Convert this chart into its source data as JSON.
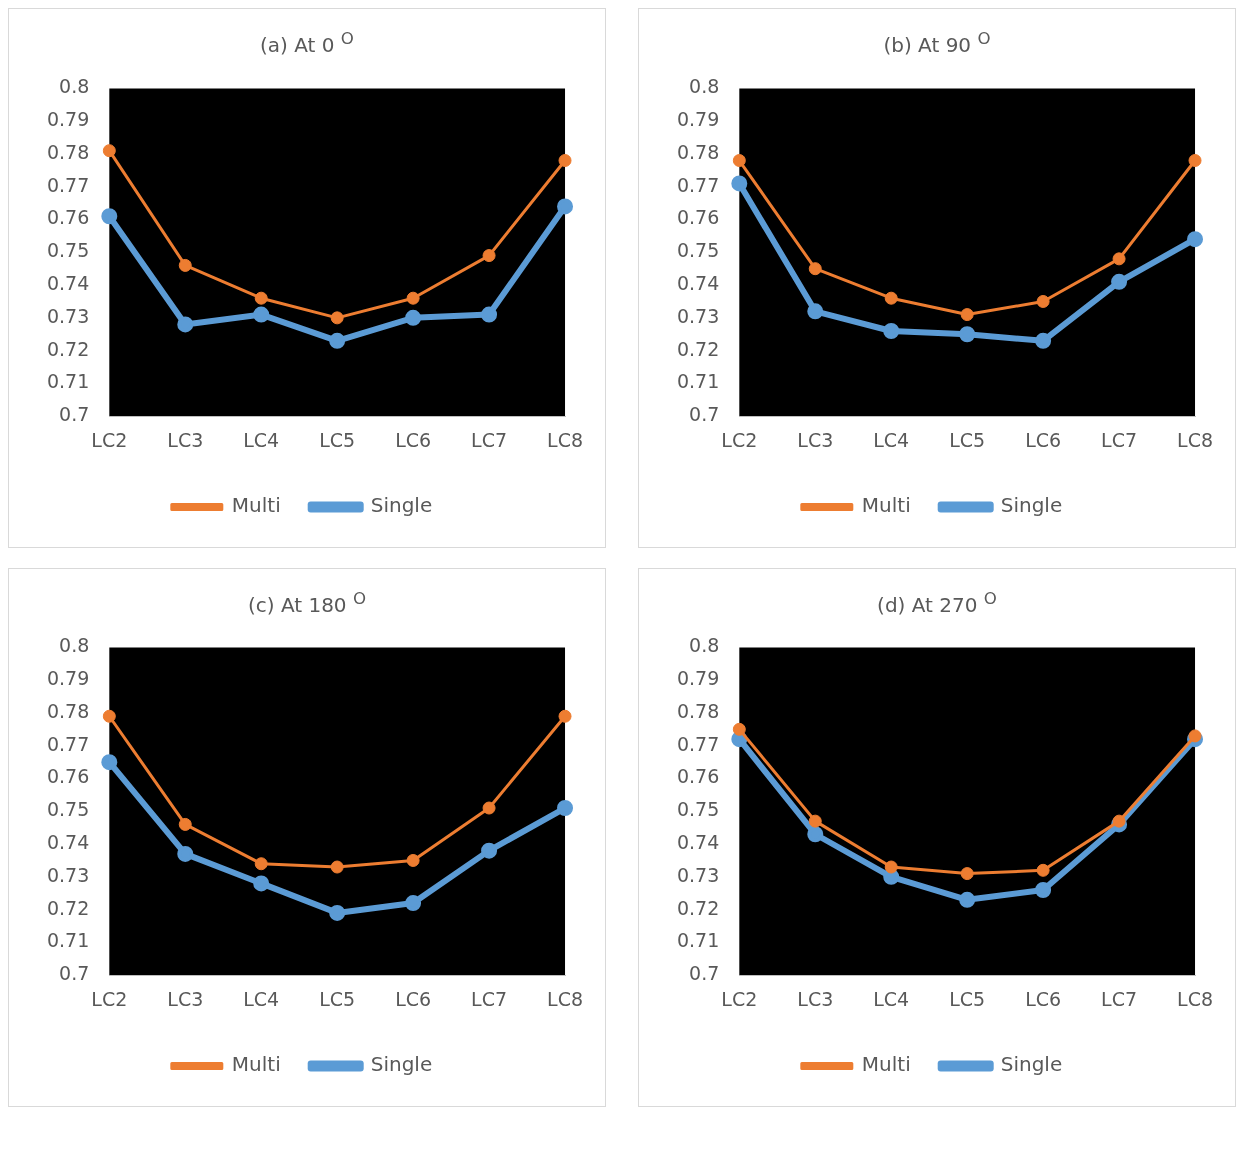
{
  "chart_data": [
    {
      "type": "line",
      "title": "(a) At 0 $^{O}$",
      "categories": [
        "LC2",
        "LC3",
        "LC4",
        "LC5",
        "LC6",
        "LC7",
        "LC8"
      ],
      "ylim": [
        0.7,
        0.8
      ],
      "yticks": [
        0.7,
        0.71,
        0.72,
        0.73,
        0.74,
        0.75,
        0.76,
        0.77,
        0.78,
        0.79,
        0.8
      ],
      "grid": false,
      "legend": "bottom",
      "marker": "circle",
      "line_style": "solid",
      "series": [
        {
          "name": "Single",
          "color": "#5b9bd5",
          "values": [
            0.761,
            0.728,
            0.731,
            0.723,
            0.73,
            0.731,
            0.764
          ]
        },
        {
          "name": "Multi",
          "color": "#ed7d31",
          "values": [
            0.781,
            0.746,
            0.736,
            0.73,
            0.736,
            0.749,
            0.778
          ]
        }
      ]
    },
    {
      "type": "line",
      "title": "(b) At 90 $^{O}$",
      "categories": [
        "LC2",
        "LC3",
        "LC4",
        "LC5",
        "LC6",
        "LC7",
        "LC8"
      ],
      "ylim": [
        0.7,
        0.8
      ],
      "yticks": [
        0.7,
        0.71,
        0.72,
        0.73,
        0.74,
        0.75,
        0.76,
        0.77,
        0.78,
        0.79,
        0.8
      ],
      "grid": false,
      "legend": "bottom",
      "marker": "circle",
      "line_style": "solid",
      "series": [
        {
          "name": "Single",
          "color": "#5b9bd5",
          "values": [
            0.771,
            0.732,
            0.726,
            0.725,
            0.723,
            0.741,
            0.754
          ]
        },
        {
          "name": "Multi",
          "color": "#ed7d31",
          "values": [
            0.778,
            0.745,
            0.736,
            0.731,
            0.735,
            0.748,
            0.778
          ]
        }
      ]
    },
    {
      "type": "line",
      "title": "(c) At 180 $^{O}$",
      "categories": [
        "LC2",
        "LC3",
        "LC4",
        "LC5",
        "LC6",
        "LC7",
        "LC8"
      ],
      "ylim": [
        0.7,
        0.8
      ],
      "yticks": [
        0.7,
        0.71,
        0.72,
        0.73,
        0.74,
        0.75,
        0.76,
        0.77,
        0.78,
        0.79,
        0.8
      ],
      "grid": false,
      "legend": "bottom",
      "marker": "circle",
      "line_style": "solid",
      "series": [
        {
          "name": "Single",
          "color": "#5b9bd5",
          "values": [
            0.765,
            0.737,
            0.728,
            0.719,
            0.722,
            0.738,
            0.751
          ]
        },
        {
          "name": "Multi",
          "color": "#ed7d31",
          "values": [
            0.779,
            0.746,
            0.734,
            0.733,
            0.735,
            0.751,
            0.779
          ]
        }
      ]
    },
    {
      "type": "line",
      "title": "(d) At 270 $^{O}$",
      "categories": [
        "LC2",
        "LC3",
        "LC4",
        "LC5",
        "LC6",
        "LC7",
        "LC8"
      ],
      "ylim": [
        0.7,
        0.8
      ],
      "yticks": [
        0.7,
        0.71,
        0.72,
        0.73,
        0.74,
        0.75,
        0.76,
        0.77,
        0.78,
        0.79,
        0.8
      ],
      "grid": false,
      "legend": "bottom",
      "marker": "circle",
      "line_style": "solid",
      "series": [
        {
          "name": "Single",
          "color": "#5b9bd5",
          "values": [
            0.772,
            0.743,
            0.73,
            0.723,
            0.726,
            0.746,
            0.772
          ]
        },
        {
          "name": "Multi",
          "color": "#ed7d31",
          "values": [
            0.775,
            0.747,
            0.733,
            0.731,
            0.732,
            0.747,
            0.773
          ]
        }
      ]
    }
  ]
}
